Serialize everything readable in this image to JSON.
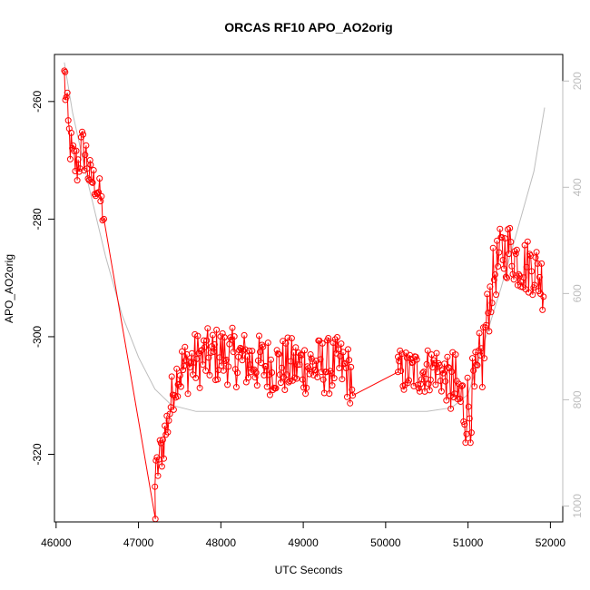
{
  "chart_data": {
    "type": "line",
    "title": "ORCAS RF10 APO_AO2orig",
    "xlabel": "UTC Seconds",
    "ylabel": "APO_AO2orig",
    "xlim": [
      45980,
      52150
    ],
    "ylim": [
      -331.5,
      -252
    ],
    "y2lim": [
      1030,
      150
    ],
    "x_ticks": [
      46000,
      47000,
      48000,
      49000,
      50000,
      51000,
      52000
    ],
    "y_ticks": [
      -260,
      -280,
      -300,
      -320
    ],
    "y2_ticks": [
      200,
      400,
      600,
      800,
      1000
    ],
    "x_tick_labels": [
      "46000",
      "47000",
      "48000",
      "49000",
      "50000",
      "51000",
      "52000"
    ],
    "y_tick_labels": [
      "-260",
      "-280",
      "-300",
      "-320"
    ],
    "y2_tick_labels": [
      "200",
      "400",
      "600",
      "800",
      "1000"
    ],
    "grid": false,
    "colors": {
      "data": "#ff0000",
      "secondary": "#bdbdbd",
      "axis": "#000000"
    },
    "series": [
      {
        "style": "line+circles",
        "color": "#ff0000",
        "segments": [
          {
            "x_start": 46100,
            "x_end": 46420,
            "trend": [
              [
                46100,
                -256
              ],
              [
                46150,
                -265
              ],
              [
                46200,
                -270
              ],
              [
                46260,
                -271
              ],
              [
                46310,
                -268
              ],
              [
                46360,
                -269
              ],
              [
                46420,
                -274
              ]
            ],
            "noise": 4
          },
          {
            "x_start": 46420,
            "x_end": 46570,
            "trend": [
              [
                46420,
                -273
              ],
              [
                46480,
                -274
              ],
              [
                46530,
                -276
              ],
              [
                46570,
                -279
              ]
            ],
            "noise": 3
          },
          {
            "x_start": 47200,
            "x_end": 47480,
            "trend": [
              [
                47200,
                -325
              ],
              [
                47250,
                -321
              ],
              [
                47300,
                -318
              ],
              [
                47360,
                -314
              ],
              [
                47420,
                -309
              ],
              [
                47480,
                -306
              ]
            ],
            "noise": 4
          },
          {
            "x_start": 47480,
            "x_end": 49600,
            "trend": [
              [
                47480,
                -306
              ],
              [
                47700,
                -304
              ],
              [
                48000,
                -303
              ],
              [
                48300,
                -304
              ],
              [
                48600,
                -305
              ],
              [
                48900,
                -305
              ],
              [
                49200,
                -305
              ],
              [
                49450,
                -305
              ],
              [
                49600,
                -307
              ]
            ],
            "noise": 5
          },
          {
            "x_start": 50150,
            "x_end": 50790,
            "trend": [
              [
                50150,
                -306
              ],
              [
                50300,
                -306
              ],
              [
                50450,
                -306
              ],
              [
                50600,
                -305
              ],
              [
                50790,
                -308
              ]
            ],
            "noise": 4
          },
          {
            "x_start": 50790,
            "x_end": 51220,
            "trend": [
              [
                50790,
                -308
              ],
              [
                50900,
                -311
              ],
              [
                51000,
                -312
              ],
              [
                51100,
                -309
              ],
              [
                51220,
                -300
              ]
            ],
            "noise": 7
          },
          {
            "x_start": 51220,
            "x_end": 51920,
            "trend": [
              [
                51220,
                -298
              ],
              [
                51300,
                -290
              ],
              [
                51400,
                -286
              ],
              [
                51500,
                -285
              ],
              [
                51600,
                -287
              ],
              [
                51700,
                -288
              ],
              [
                51800,
                -288
              ],
              [
                51920,
                -291
              ]
            ],
            "noise": 5
          }
        ],
        "points": [
          {
            "x": 46110,
            "y": -255
          },
          {
            "x": 46580,
            "y": -280
          },
          {
            "x": 47205,
            "y": -331
          },
          {
            "x": 49600,
            "y": -310
          },
          {
            "x": 50150,
            "y": -306
          }
        ]
      },
      {
        "style": "line",
        "color": "#bdbdbd",
        "axis": "right",
        "points": [
          {
            "x": 46100,
            "y": 165
          },
          {
            "x": 46200,
            "y": 260
          },
          {
            "x": 46400,
            "y": 400
          },
          {
            "x": 46600,
            "y": 530
          },
          {
            "x": 46800,
            "y": 640
          },
          {
            "x": 47000,
            "y": 720
          },
          {
            "x": 47200,
            "y": 780
          },
          {
            "x": 47400,
            "y": 810
          },
          {
            "x": 47700,
            "y": 822
          },
          {
            "x": 50000,
            "y": 822
          },
          {
            "x": 50500,
            "y": 822
          },
          {
            "x": 50800,
            "y": 815
          },
          {
            "x": 51000,
            "y": 790
          },
          {
            "x": 51200,
            "y": 690
          },
          {
            "x": 51400,
            "y": 590
          },
          {
            "x": 51600,
            "y": 480
          },
          {
            "x": 51800,
            "y": 370
          },
          {
            "x": 51930,
            "y": 250
          }
        ]
      }
    ]
  }
}
